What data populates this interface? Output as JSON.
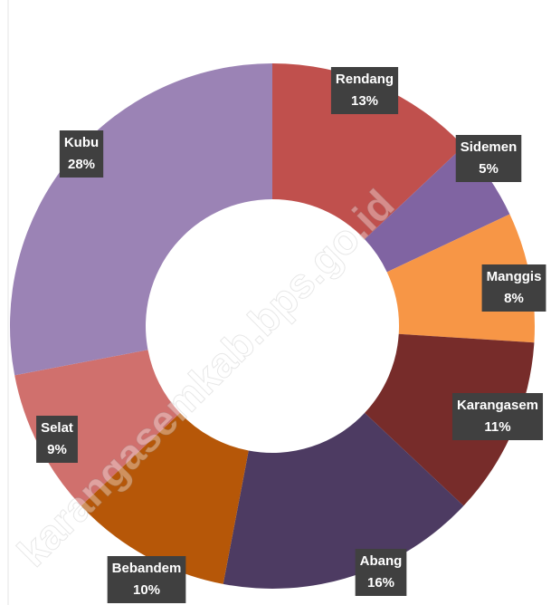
{
  "chart_data": {
    "type": "donut",
    "categories": [
      "Rendang",
      "Sidemen",
      "Manggis",
      "Karangasem",
      "Abang",
      "Bebandem",
      "Selat",
      "Kubu"
    ],
    "values": [
      13,
      5,
      8,
      11,
      16,
      10,
      9,
      28
    ],
    "value_labels": [
      "13%",
      "5%",
      "8%",
      "11%",
      "16%",
      "10%",
      "9%",
      "28%"
    ],
    "colors": [
      "#c0504d",
      "#8064a2",
      "#f79646",
      "#772c2a",
      "#4d3b62",
      "#b65708",
      "#d0706d",
      "#9b83b5"
    ],
    "watermark": "karangasemkab.bps.go.id"
  }
}
